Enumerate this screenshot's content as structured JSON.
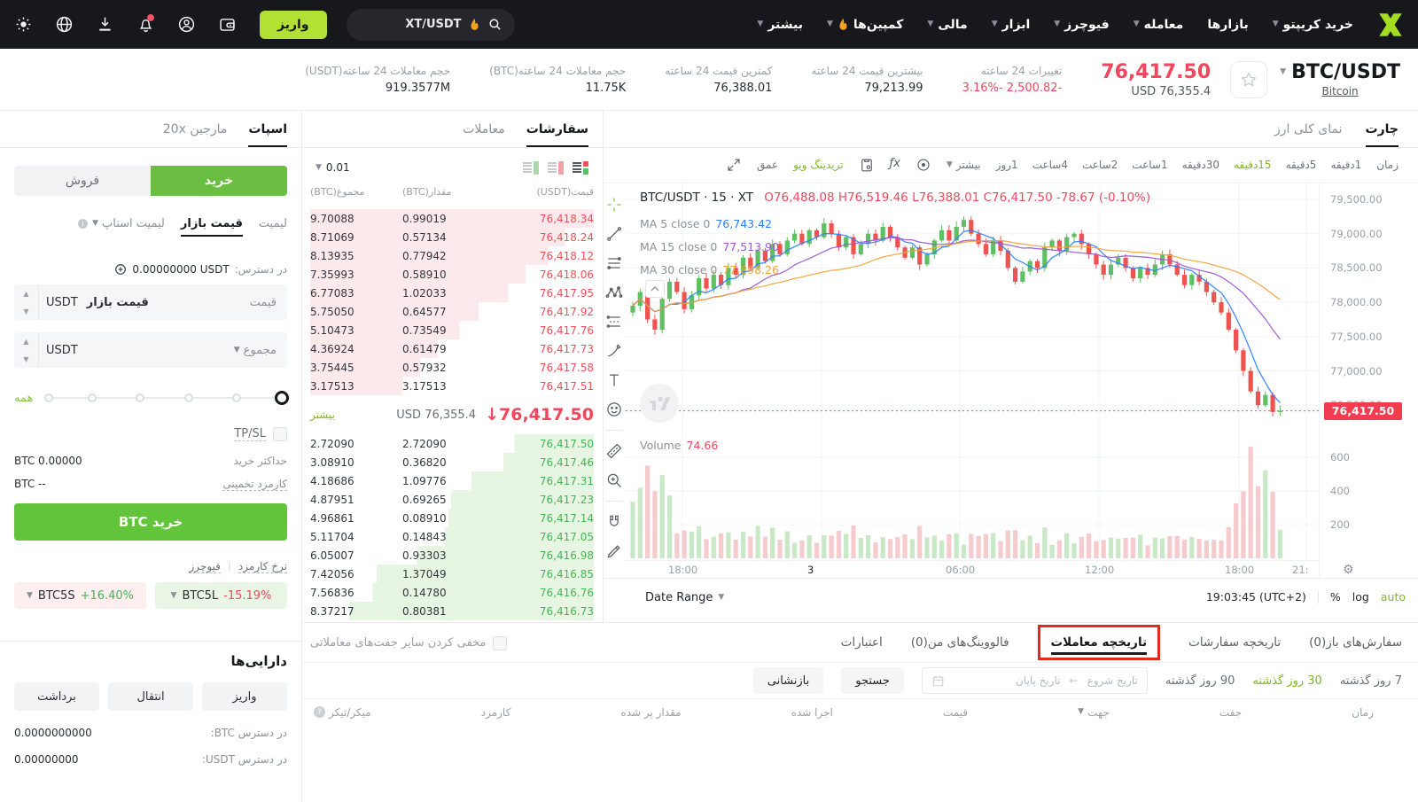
{
  "brand": {
    "accent_green": "#b3e034",
    "buy_green": "#62c43a",
    "down_red": "#f0475c",
    "up_green": "#47b355"
  },
  "nav": {
    "icons": [
      "theme-sun",
      "globe-language",
      "download-app",
      "notification-bell",
      "user-profile",
      "wallet"
    ],
    "deposit_label": "واریز",
    "search_value": "XT/USDT",
    "menu": [
      {
        "label": "خرید کریپتو",
        "caret": true
      },
      {
        "label": "بازارها",
        "caret": false
      },
      {
        "label": "معامله",
        "caret": true
      },
      {
        "label": "فیوچرز",
        "caret": true
      },
      {
        "label": "ابزار",
        "caret": true
      },
      {
        "label": "مالی",
        "caret": true
      },
      {
        "label": "کمپین‌ها",
        "caret": true,
        "fire": true
      },
      {
        "label": "بیشتر",
        "caret": true
      }
    ]
  },
  "header": {
    "pair": "BTC/USDT",
    "pair_sub": "Bitcoin",
    "price": "76,417.50",
    "price_usd": "USD 76,355.4",
    "stats": [
      {
        "label": "تغییرات 24 ساعته",
        "value": "3.16%- 2,500.82-",
        "negative": true
      },
      {
        "label": "بیشترین قیمت 24 ساعته",
        "value": "79,213.99"
      },
      {
        "label": "کمترین قیمت 24 ساعته",
        "value": "76,388.01"
      },
      {
        "label": "حجم معاملات 24 ساعته(BTC)",
        "value": "11.75K"
      },
      {
        "label": "حجم معاملات 24 ساعته(USDT)",
        "value": "919.3577M"
      }
    ]
  },
  "trade_panel": {
    "tab_spot": "اسپات",
    "tab_margin": "مارجین 20x",
    "buy_label": "خرید",
    "sell_label": "فروش",
    "order_types": [
      "لیمیت",
      "قیمت بازار",
      "لیمیت استاپ"
    ],
    "active_order_type": "قیمت بازار",
    "available_label": "در دسترس:",
    "available_value": "0.00000000 USDT",
    "price_label": "قیمت",
    "price_value": "قیمت بازار",
    "price_unit": "USDT",
    "total_label": "مجموع",
    "total_unit": "USDT",
    "slider_all_label": "همه",
    "tpsl_label": "TP/SL",
    "max_buy_label": "حداکثر خرید",
    "max_buy_value": "BTC 0.00000",
    "est_fee_label": "کارمزد تخمینی",
    "est_fee_value": "BTC --",
    "submit_label": "خرید BTC",
    "fee_rate_label": "نرخ کارمزد",
    "futures_label": "فیوچرز",
    "etf_pills": [
      {
        "name": "BTC5L",
        "change": "-15.19%",
        "direction": "down",
        "bg": "#eaf6e5"
      },
      {
        "name": "BTC5S",
        "change": "+16.40%",
        "direction": "up",
        "bg": "#fdeef0"
      }
    ],
    "assets": {
      "title": "دارایی‌ها",
      "buttons": [
        "واریز",
        "انتقال",
        "برداشت"
      ],
      "rows": [
        {
          "label": "در دسترس BTC:",
          "label_display": "BTC در دسترس:",
          "value": "0.0000000000"
        },
        {
          "label": "در دسترس USDT:",
          "label_display": "USDT در دسترس:",
          "value": "0.00000000"
        }
      ]
    }
  },
  "orderbook": {
    "tab_orders": "سفارشات",
    "tab_trades": "معاملات",
    "precision": "0.01",
    "view_icons": [
      "book-combined-view",
      "book-asks-view",
      "book-bids-view"
    ],
    "headers_ltr": [
      "(BTC)مجموع",
      "(BTC)مقدار",
      "(USDT)قیمت"
    ],
    "asks": [
      {
        "price": "76,418.34",
        "amount": "0.99019",
        "total": "9.70088"
      },
      {
        "price": "76,418.24",
        "amount": "0.57134",
        "total": "8.71069"
      },
      {
        "price": "76,418.12",
        "amount": "0.77942",
        "total": "8.13935"
      },
      {
        "price": "76,418.06",
        "amount": "0.58910",
        "total": "7.35993"
      },
      {
        "price": "76,417.95",
        "amount": "1.02033",
        "total": "6.77083"
      },
      {
        "price": "76,417.92",
        "amount": "0.64577",
        "total": "5.75050"
      },
      {
        "price": "76,417.76",
        "amount": "0.73549",
        "total": "5.10473"
      },
      {
        "price": "76,417.73",
        "amount": "0.61479",
        "total": "4.36924"
      },
      {
        "price": "76,417.58",
        "amount": "0.57932",
        "total": "3.75445"
      },
      {
        "price": "76,417.51",
        "amount": "3.17513",
        "total": "3.17513"
      }
    ],
    "last_price": "76,417.50",
    "last_usd": "USD 76,355.4",
    "more_label": "بیشتر",
    "bids": [
      {
        "price": "76,417.50",
        "amount": "2.72090",
        "total": "2.72090"
      },
      {
        "price": "76,417.46",
        "amount": "0.36820",
        "total": "3.08910"
      },
      {
        "price": "76,417.31",
        "amount": "1.09776",
        "total": "4.18686"
      },
      {
        "price": "76,417.23",
        "amount": "0.69265",
        "total": "4.87951"
      },
      {
        "price": "76,417.14",
        "amount": "0.08910",
        "total": "4.96861"
      },
      {
        "price": "76,417.05",
        "amount": "0.14843",
        "total": "5.11704"
      },
      {
        "price": "76,416.98",
        "amount": "0.93303",
        "total": "6.05007"
      },
      {
        "price": "76,416.85",
        "amount": "1.37049",
        "total": "7.42056"
      },
      {
        "price": "76,416.76",
        "amount": "0.14780",
        "total": "7.56836"
      },
      {
        "price": "76,416.73",
        "amount": "0.80381",
        "total": "8.37217"
      }
    ]
  },
  "chart": {
    "tab_chart": "چارت",
    "tab_overview": "نمای کلی ارز",
    "time_label": "زمان",
    "timeframes": [
      "1دقیقه",
      "5دقیقه",
      "15دقیقه",
      "30دقیقه",
      "1ساعت",
      "2ساعت",
      "4ساعت",
      "1روز"
    ],
    "active_timeframe": "15دقیقه",
    "more_label": "بیشتر",
    "tradingview_label": "تریدینگ ویو",
    "depth_label": "عمق",
    "date_range_label": "Date Range",
    "clock": "19:03:45 (UTC+2)",
    "percent_label": "%",
    "log_label": "log",
    "auto_label": "auto"
  },
  "chart_data": {
    "type": "candlestick+volume",
    "symbol_legend": "BTC/USDT · 15 · XT",
    "ohlc": {
      "o": "O76,488.08",
      "h": "H76,519.46",
      "l": "L76,388.01",
      "c": "C76,417.50",
      "change": "-78.67 (−0.10%)",
      "change_display": "-78.67 (-0.10%)"
    },
    "ma": [
      {
        "label": "MA 5 close 0",
        "value": "76,743.42",
        "color": "#2b7fff"
      },
      {
        "label": "MA 15 close 0",
        "value": "77,513.90",
        "color": "#9b59d0"
      },
      {
        "label": "MA 30 close 0",
        "value": "77,898.26",
        "color": "#f2a33c"
      }
    ],
    "volume_label": "Volume",
    "volume_value": "74.66",
    "last_price": 76417.5,
    "y_ticks": [
      79500,
      79000,
      78500,
      78000,
      77500,
      77000,
      76500
    ],
    "volume_ticks": [
      600,
      400,
      200
    ],
    "x_ticks": [
      {
        "label": "18:00",
        "x": 64
      },
      {
        "label": "3",
        "x": 221,
        "day": true
      },
      {
        "label": "06:00",
        "x": 377
      },
      {
        "label": "12:00",
        "x": 534
      },
      {
        "label": "18:00",
        "x": 692
      },
      {
        "label": "21:",
        "x": 768
      }
    ],
    "closes": [
      77950,
      78150,
      77750,
      77600,
      78050,
      78300,
      78150,
      77900,
      78100,
      78350,
      78200,
      78400,
      78250,
      78500,
      78400,
      78650,
      78500,
      78750,
      78600,
      78850,
      78700,
      78900,
      79000,
      78850,
      79050,
      78950,
      79150,
      79000,
      78800,
      78950,
      78700,
      78850,
      79000,
      78900,
      79100,
      78950,
      78800,
      78650,
      78800,
      78550,
      78700,
      78900,
      79050,
      78900,
      79100,
      79200,
      79000,
      78850,
      78700,
      78900,
      78750,
      78500,
      78300,
      78450,
      78600,
      78500,
      78800,
      78900,
      78750,
      78950,
      79000,
      78850,
      78700,
      78550,
      78400,
      78550,
      78650,
      78500,
      78350,
      78500,
      78400,
      78550,
      78700,
      78550,
      78400,
      78250,
      78400,
      78300,
      78150,
      78000,
      77850,
      77600,
      77300,
      77000,
      76700,
      76500,
      76650,
      76400,
      76417.5
    ],
    "up_color": "#5fbf63",
    "down_color": "#ef5350"
  },
  "bottom_panel": {
    "tabs": [
      {
        "label": "سفارش‌های باز(0)"
      },
      {
        "label": "تاریخچه سفارشات"
      },
      {
        "label": "تاریخچه معاملات",
        "active": true,
        "highlighted": true
      },
      {
        "label": "فالووینگ‌های من(0)"
      },
      {
        "label": "اعتبارات"
      }
    ],
    "hide_pairs_label": "مخفی کردن سایر جفت‌های معاملاتی",
    "ranges": [
      "7 روز گذشته",
      "30 روز گذشته",
      "90 روز گذشته"
    ],
    "active_range": "30 روز گذشته",
    "date_start_placeholder": "تاریخ شروع",
    "date_end_placeholder": "تاریخ پایان",
    "search_label": "جستجو",
    "reset_label": "بازنشانی",
    "table_headers": [
      "زمان",
      "جفت",
      "جهت",
      "قیمت",
      "اجرا شده",
      "مقدار پر شده",
      "کارمزد",
      "میکر/تیکر"
    ]
  }
}
